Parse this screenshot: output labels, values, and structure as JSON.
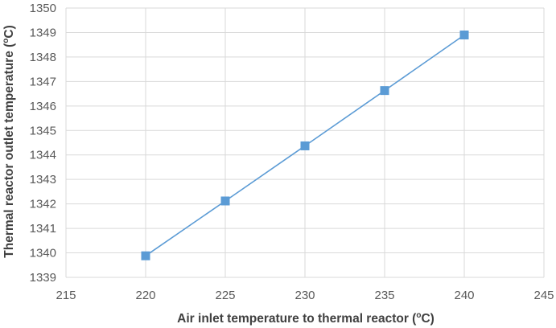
{
  "chart_data": {
    "type": "scatter",
    "title": "",
    "xlabel_prefix": "Air inlet temperature to thermal reactor (",
    "xlabel_sup": "o",
    "xlabel_suffix": "C)",
    "ylabel_prefix": "Thermal reactor outlet temperature (",
    "ylabel_sup": "o",
    "ylabel_suffix": "C)",
    "xlim": [
      215,
      245
    ],
    "ylim": [
      1339,
      1350
    ],
    "xticks": [
      215,
      220,
      225,
      230,
      235,
      240,
      245
    ],
    "yticks": [
      1339,
      1340,
      1341,
      1342,
      1343,
      1344,
      1345,
      1346,
      1347,
      1348,
      1349,
      1350
    ],
    "grid": true,
    "legend": "none",
    "series": [
      {
        "color": "#5b9bd5",
        "marker": "square",
        "line": "straight",
        "x": [
          220,
          225,
          230,
          235,
          240
        ],
        "y": [
          1339.88,
          1342.12,
          1344.37,
          1346.63,
          1348.9
        ]
      }
    ]
  }
}
